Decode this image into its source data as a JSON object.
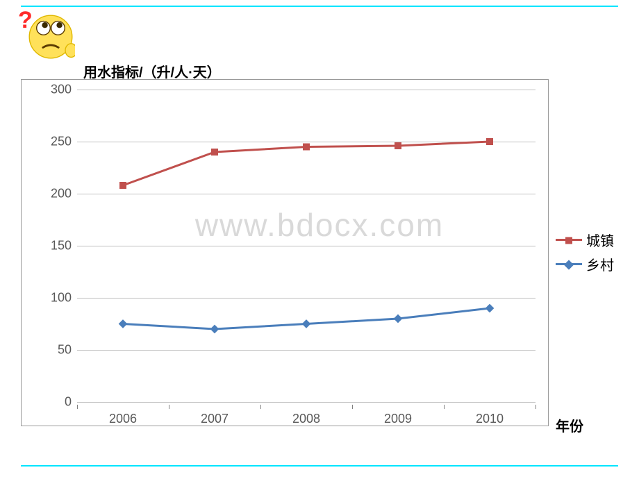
{
  "rules": {
    "color": "#00e5ff"
  },
  "emoji": {
    "name": "thinking-face"
  },
  "watermark": {
    "text": "www.bdocx.com",
    "color": "#d9d9d9",
    "fontsize": 46
  },
  "chart": {
    "type": "line",
    "y_title": "用水指标/（升/人·天）",
    "x_title": "年份",
    "title_fontsize": 20,
    "label_fontsize": 18,
    "background": "#ffffff",
    "border_color": "#999999",
    "grid_color": "#bfbfbf",
    "tick_color": "#595959",
    "ylim": [
      0,
      300
    ],
    "ytick_step": 50,
    "yticks": [
      0,
      50,
      100,
      150,
      200,
      250,
      300
    ],
    "categories": [
      "2006",
      "2007",
      "2008",
      "2009",
      "2010"
    ],
    "series": [
      {
        "name": "城镇",
        "color": "#c0504d",
        "line_width": 3,
        "marker": "square",
        "marker_size": 9,
        "values": [
          208,
          240,
          245,
          246,
          250
        ]
      },
      {
        "name": "乡村",
        "color": "#4a7ebb",
        "line_width": 3,
        "marker": "diamond",
        "marker_size": 9,
        "values": [
          75,
          70,
          75,
          80,
          90
        ]
      }
    ],
    "legend": {
      "position": "right",
      "fontsize": 20
    }
  }
}
